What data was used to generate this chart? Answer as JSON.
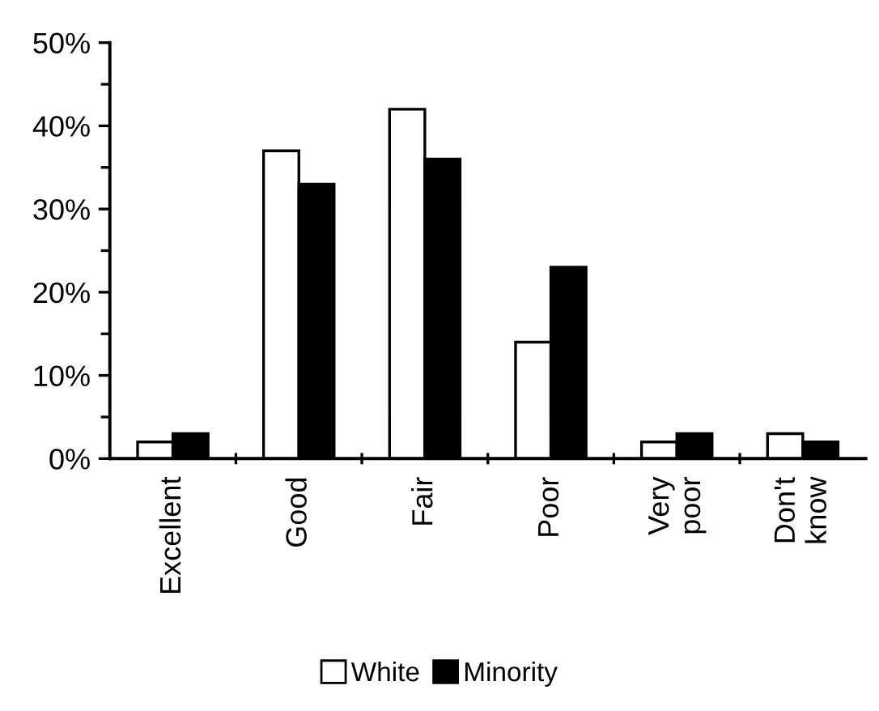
{
  "chart_data": {
    "type": "bar",
    "categories": [
      "Excellent",
      "Good",
      "Fair",
      "Poor",
      "Very\npoor",
      "Don't\nknow"
    ],
    "series": [
      {
        "name": "White",
        "color": "#ffffff",
        "values": [
          2,
          37,
          42,
          14,
          2,
          3
        ]
      },
      {
        "name": "Minority",
        "color": "#000000",
        "values": [
          3,
          33,
          36,
          23,
          3,
          2
        ]
      }
    ],
    "ylim": [
      0,
      50
    ],
    "yticks": [
      {
        "value": 0,
        "label": "0%"
      },
      {
        "value": 10,
        "label": "10%"
      },
      {
        "value": 20,
        "label": "20%"
      },
      {
        "value": 30,
        "label": "30%"
      },
      {
        "value": 40,
        "label": "40%"
      },
      {
        "value": 50,
        "label": "50%"
      }
    ],
    "grid": false,
    "legend": "bottom"
  }
}
